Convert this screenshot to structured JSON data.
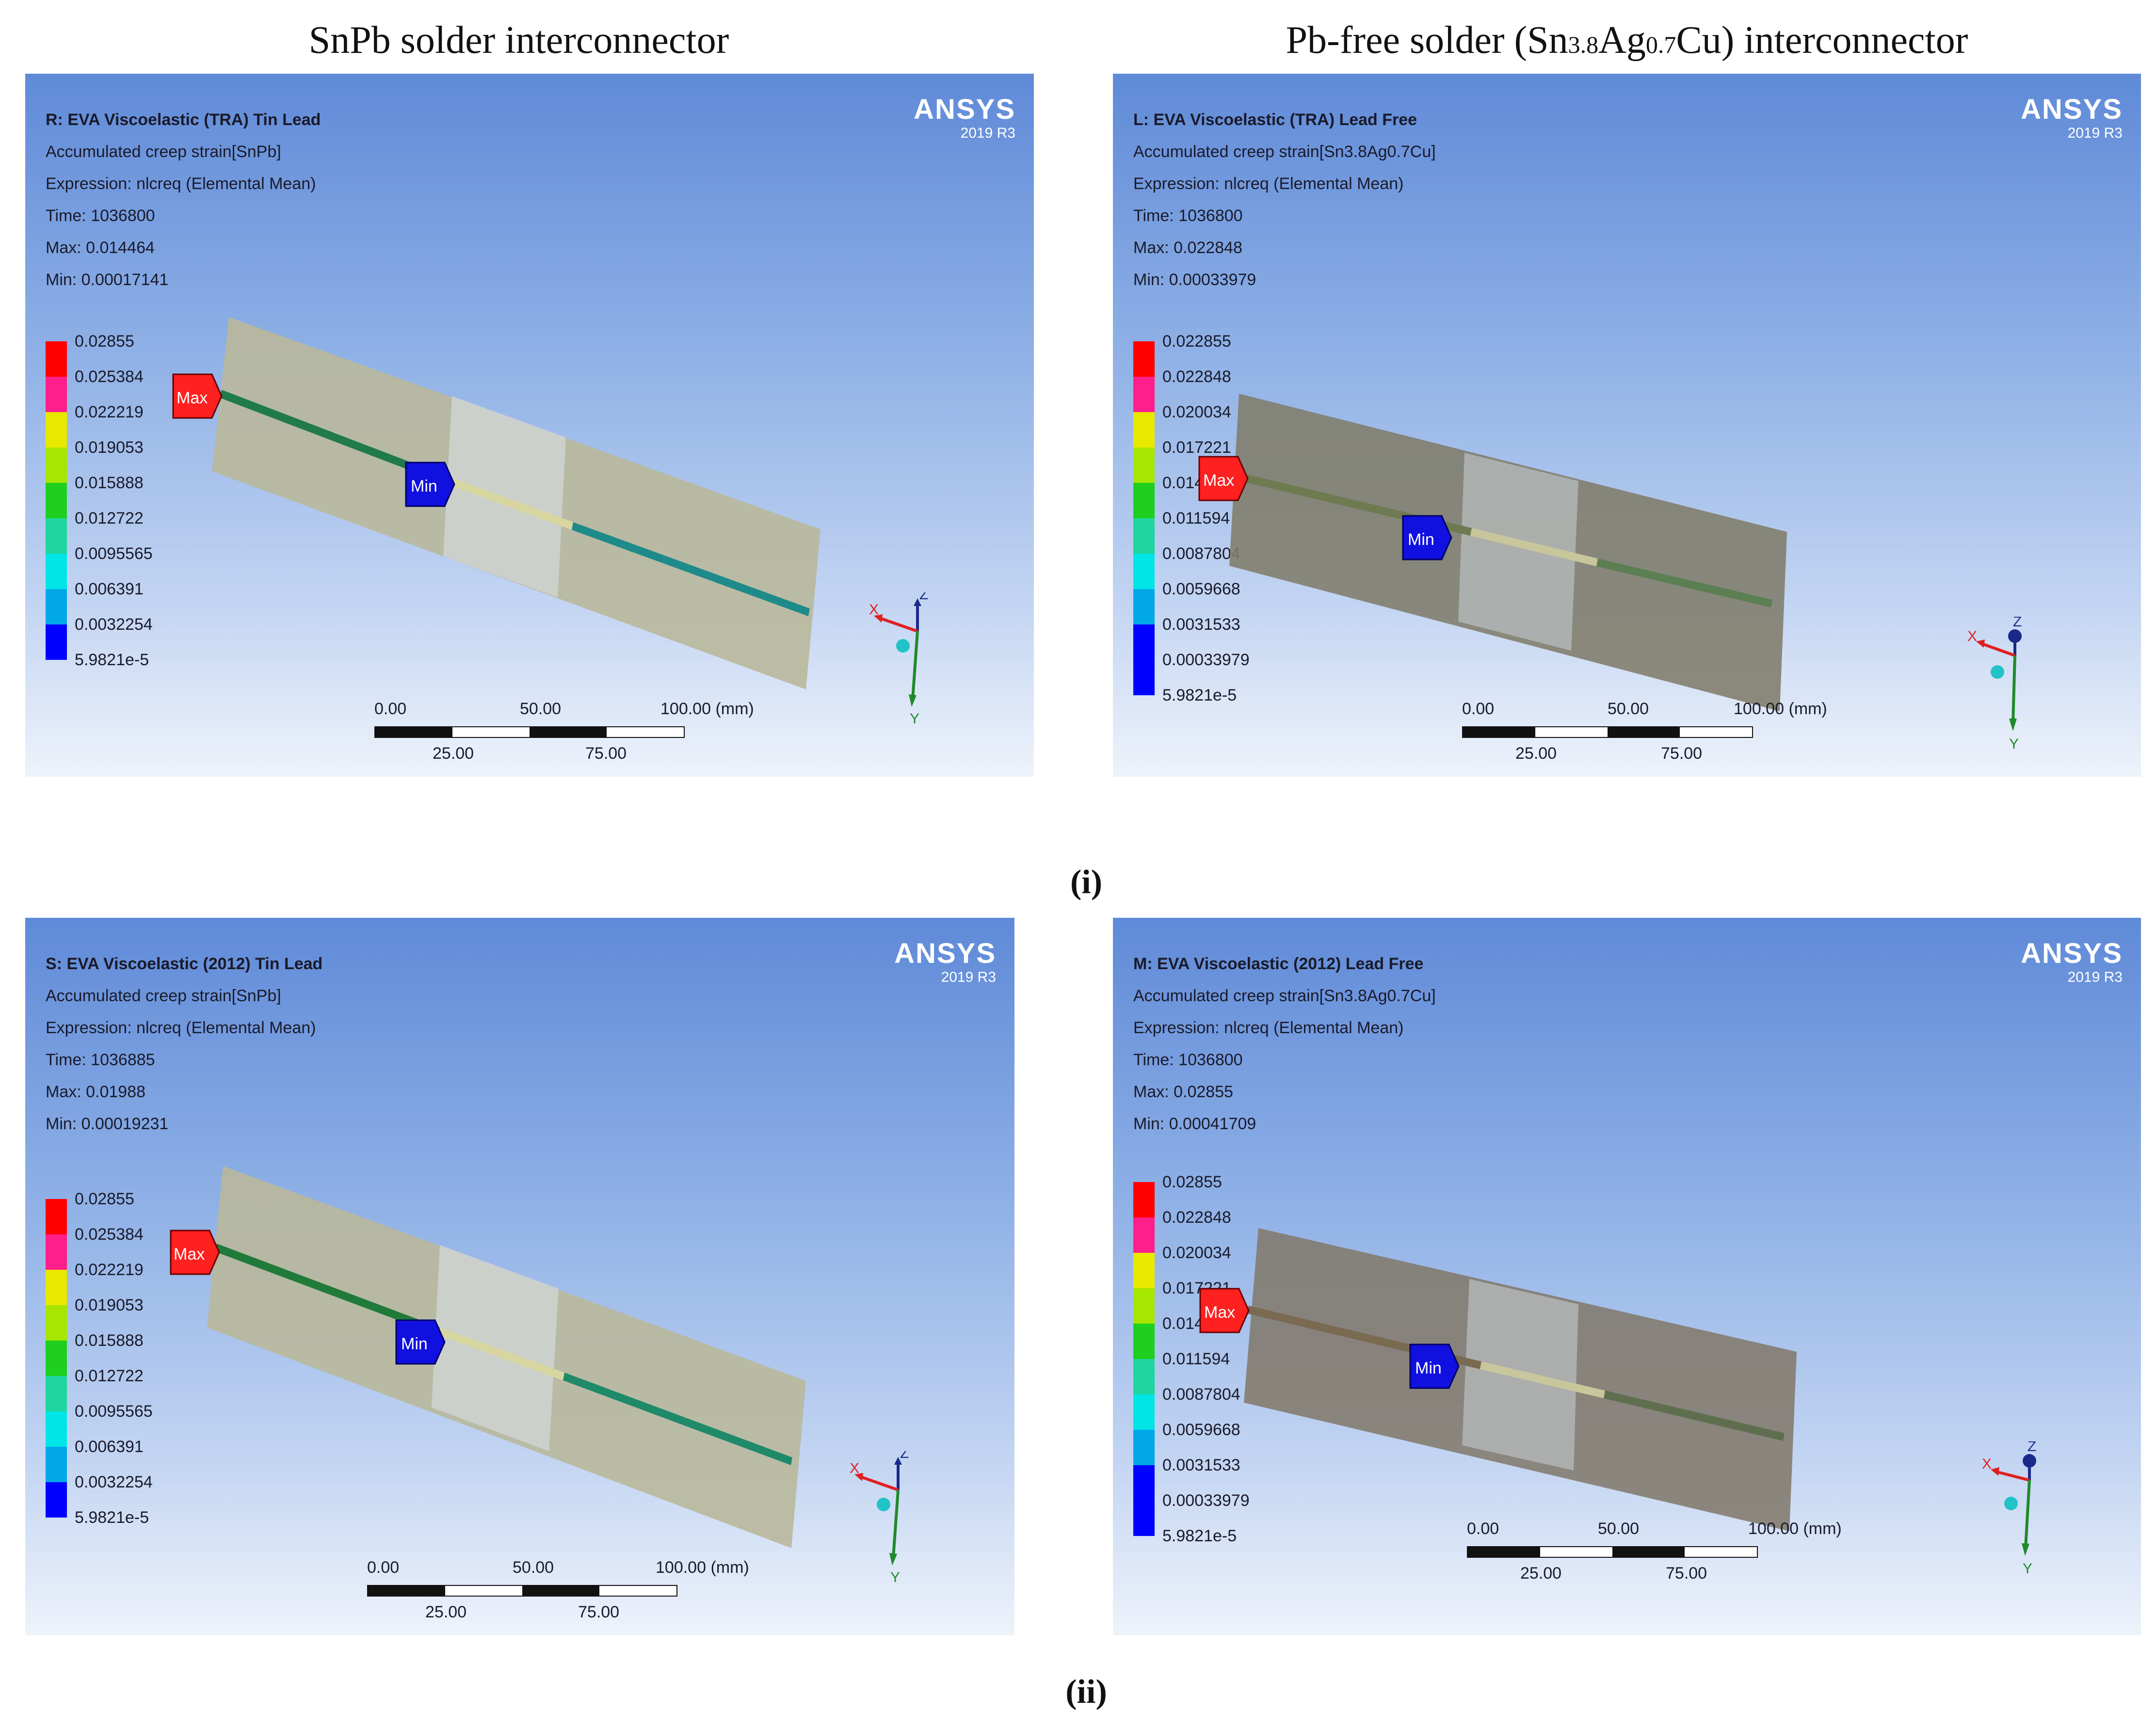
{
  "column_titles": {
    "left": "SnPb solder interconnector",
    "right_prefix": "Pb-free solder (Sn",
    "right_sub1": "3.8",
    "right_mid": "Ag",
    "right_sub2": "0.7",
    "right_suffix": "Cu) interconnector"
  },
  "row_labels": {
    "row1": "(i)",
    "row2": "(ii)"
  },
  "brand": {
    "logo": "ANSYS",
    "version": "2019 R3"
  },
  "colors": {
    "legend_bands": [
      "#ff0000",
      "#ff1f8a",
      "#e8e800",
      "#a6e600",
      "#1fcf1f",
      "#1fd6a0",
      "#00e5e5",
      "#00a8e8",
      "#0000ff"
    ],
    "max_marker": "#ff2020",
    "min_marker": "#1010e0"
  },
  "panels": [
    {
      "id": "R",
      "title": "R: EVA Viscoelastic (TRA) Tin Lead",
      "result": "Accumulated creep strain[SnPb]",
      "expression": "Expression: nlcreq (Elemental Mean)",
      "time": "Time: 1036800",
      "max": "Max: 0.014464",
      "min": "Min: 0.00017141",
      "legend": [
        "0.02855",
        "0.025384",
        "0.022219",
        "0.019053",
        "0.015888",
        "0.012722",
        "0.0095565",
        "0.006391",
        "0.0032254",
        "5.9821e-5"
      ],
      "max_tag": "Max",
      "min_tag": "Min",
      "scale": {
        "l0": "0.00",
        "l50": "50.00",
        "l100": "100.00 (mm)",
        "l25": "25.00",
        "l75": "75.00"
      },
      "axes": {
        "x": "X",
        "y": "Y",
        "z": "Z"
      }
    },
    {
      "id": "L",
      "title": "L: EVA Viscoelastic (TRA) Lead Free",
      "result": "Accumulated creep strain[Sn3.8Ag0.7Cu]",
      "expression": "Expression: nlcreq (Elemental Mean)",
      "time": "Time: 1036800",
      "max": "Max: 0.022848",
      "min": "Min: 0.00033979",
      "legend": [
        "0.022855",
        "0.022848",
        "0.020034",
        "0.017221",
        "0.014407",
        "0.011594",
        "0.0087804",
        "0.0059668",
        "0.0031533",
        "0.00033979",
        "5.9821e-5"
      ],
      "max_tag": "Max",
      "min_tag": "Min",
      "scale": {
        "l0": "0.00",
        "l50": "50.00",
        "l100": "100.00 (mm)",
        "l25": "25.00",
        "l75": "75.00"
      },
      "axes": {
        "x": "X",
        "y": "Y",
        "z": "Z"
      }
    },
    {
      "id": "S",
      "title": "S: EVA Viscoelastic (2012) Tin Lead",
      "result": "Accumulated creep strain[SnPb]",
      "expression": "Expression: nlcreq (Elemental Mean)",
      "time": "Time: 1036885",
      "max": "Max: 0.01988",
      "min": "Min: 0.00019231",
      "legend": [
        "0.02855",
        "0.025384",
        "0.022219",
        "0.019053",
        "0.015888",
        "0.012722",
        "0.0095565",
        "0.006391",
        "0.0032254",
        "5.9821e-5"
      ],
      "max_tag": "Max",
      "min_tag": "Min",
      "scale": {
        "l0": "0.00",
        "l50": "50.00",
        "l100": "100.00 (mm)",
        "l25": "25.00",
        "l75": "75.00"
      },
      "axes": {
        "x": "X",
        "y": "Y",
        "z": "Z"
      }
    },
    {
      "id": "M",
      "title": "M: EVA Viscoelastic (2012) Lead Free",
      "result": "Accumulated creep strain[Sn3.8Ag0.7Cu]",
      "expression": "Expression: nlcreq (Elemental Mean)",
      "time": "Time: 1036800",
      "max": "Max: 0.02855",
      "min": "Min: 0.00041709",
      "legend": [
        "0.02855",
        "0.022848",
        "0.020034",
        "0.017221",
        "0.014407",
        "0.011594",
        "0.0087804",
        "0.0059668",
        "0.0031533",
        "0.00033979",
        "5.9821e-5"
      ],
      "max_tag": "Max",
      "min_tag": "Min",
      "scale": {
        "l0": "0.00",
        "l50": "50.00",
        "l100": "100.00 (mm)",
        "l25": "25.00",
        "l75": "75.00"
      },
      "axes": {
        "x": "X",
        "y": "Y",
        "z": "Z"
      }
    }
  ]
}
